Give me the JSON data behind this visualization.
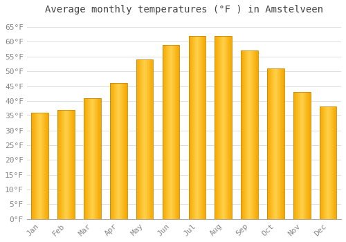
{
  "title": "Average monthly temperatures (°F ) in Amstelveen",
  "months": [
    "Jan",
    "Feb",
    "Mar",
    "Apr",
    "May",
    "Jun",
    "Jul",
    "Aug",
    "Sep",
    "Oct",
    "Nov",
    "Dec"
  ],
  "values": [
    36,
    37,
    41,
    46,
    54,
    59,
    62,
    62,
    57,
    51,
    43,
    38
  ],
  "bar_color_center": "#FFD04A",
  "bar_color_edge_side": "#F5A800",
  "bar_border_color": "#C8890A",
  "background_color": "#FFFFFF",
  "grid_color": "#DDDDDD",
  "ylim": [
    0,
    68
  ],
  "ytick_step": 5,
  "title_fontsize": 10,
  "tick_fontsize": 8,
  "font_family": "monospace",
  "bar_width": 0.65
}
